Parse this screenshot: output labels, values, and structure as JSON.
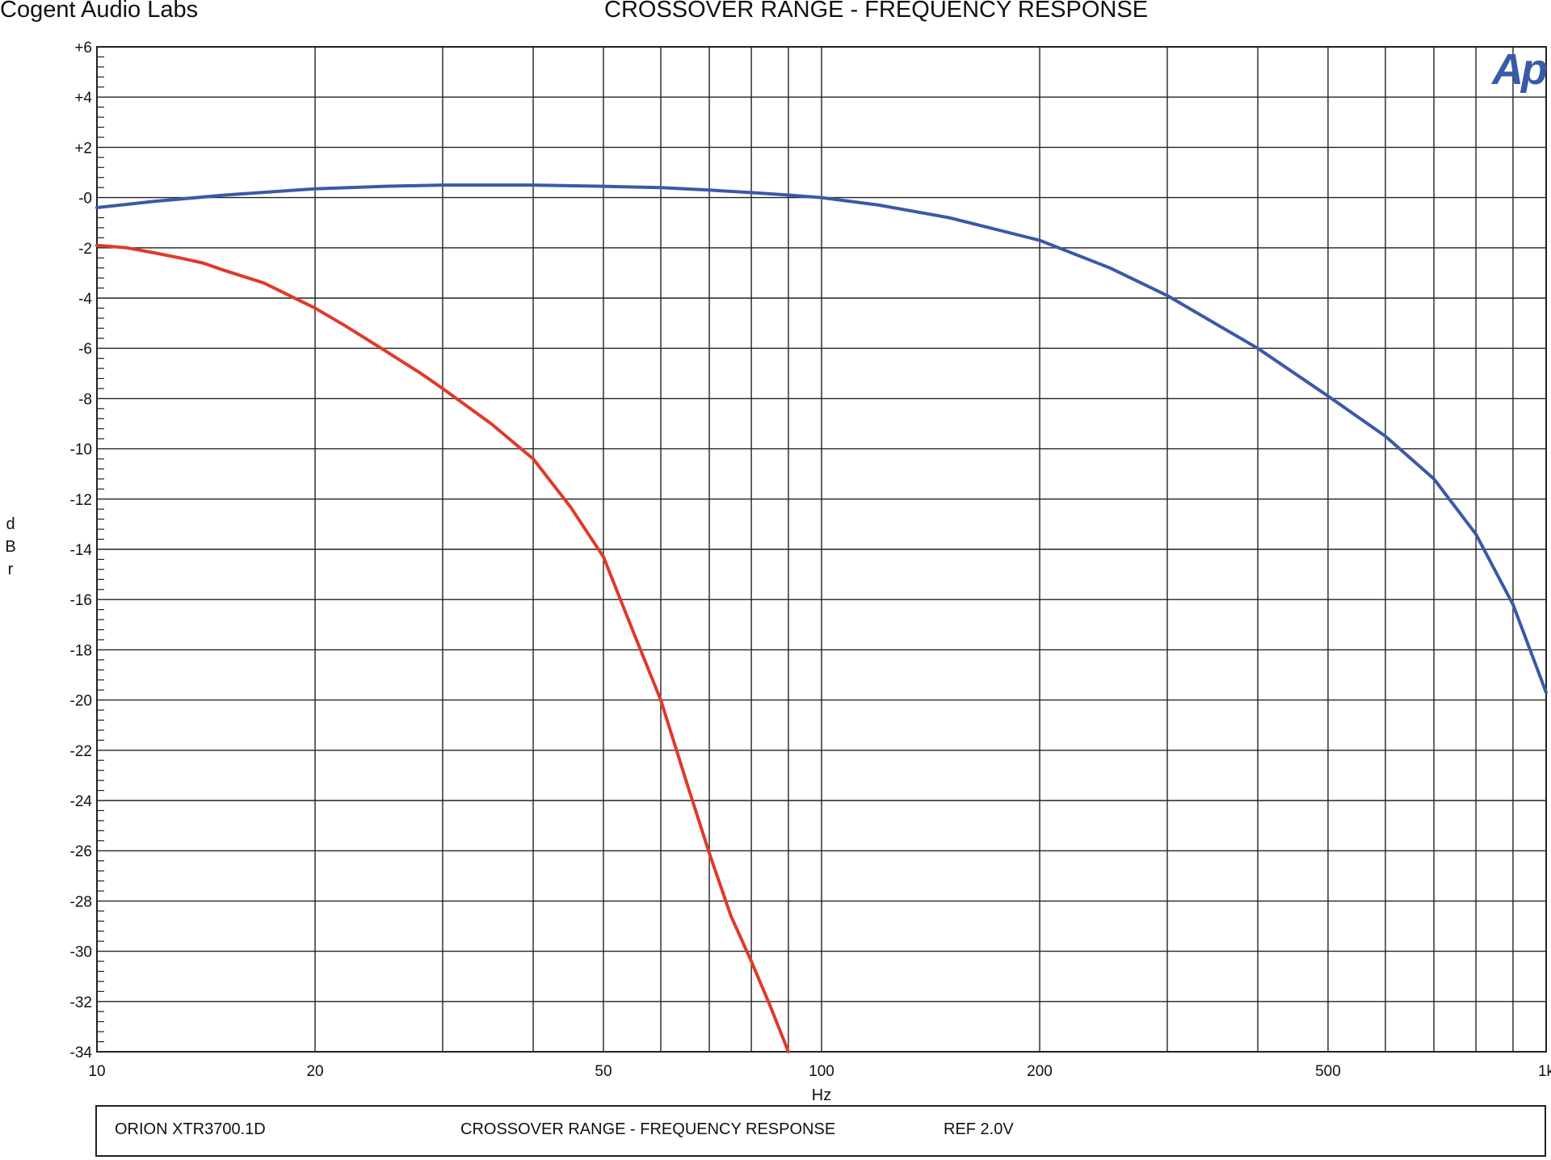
{
  "header": {
    "brand": "Cogent Audio Labs",
    "title": "CROSSOVER RANGE  -  FREQUENCY RESPONSE"
  },
  "footer": {
    "model": "ORION  XTR3700.1D",
    "title": "CROSSOVER RANGE  -  FREQUENCY RESPONSE",
    "ref": "REF 2.0V"
  },
  "chart_data": {
    "type": "line",
    "title": "CROSSOVER RANGE  -  FREQUENCY RESPONSE",
    "xlabel": "Hz",
    "ylabel": "dBr",
    "xscale": "log",
    "xlim": [
      10,
      1000
    ],
    "ylim": [
      -34,
      6
    ],
    "grid": true,
    "legend": "none",
    "logo_text": "Ap",
    "logo_color": "#3a5aa8",
    "x_tick_labels": [
      {
        "value": 10,
        "label": "10"
      },
      {
        "value": 20,
        "label": "20"
      },
      {
        "value": 50,
        "label": "50"
      },
      {
        "value": 100,
        "label": "100"
      },
      {
        "value": 200,
        "label": "200"
      },
      {
        "value": 500,
        "label": "500"
      },
      {
        "value": 1000,
        "label": "1k"
      }
    ],
    "x_gridlines": [
      10,
      20,
      30,
      40,
      50,
      60,
      70,
      80,
      90,
      100,
      200,
      300,
      400,
      500,
      600,
      700,
      800,
      900,
      1000
    ],
    "y_ticks": [
      {
        "value": 6,
        "label": "+6"
      },
      {
        "value": 4,
        "label": "+4"
      },
      {
        "value": 2,
        "label": "+2"
      },
      {
        "value": 0,
        "label": "-0"
      },
      {
        "value": -2,
        "label": "-2"
      },
      {
        "value": -4,
        "label": "-4"
      },
      {
        "value": -6,
        "label": "-6"
      },
      {
        "value": -8,
        "label": "-8"
      },
      {
        "value": -10,
        "label": "-10"
      },
      {
        "value": -12,
        "label": "-12"
      },
      {
        "value": -14,
        "label": "-14"
      },
      {
        "value": -16,
        "label": "-16"
      },
      {
        "value": -18,
        "label": "-18"
      },
      {
        "value": -20,
        "label": "-20"
      },
      {
        "value": -22,
        "label": "-22"
      },
      {
        "value": -24,
        "label": "-24"
      },
      {
        "value": -26,
        "label": "-26"
      },
      {
        "value": -28,
        "label": "-28"
      },
      {
        "value": -30,
        "label": "-30"
      },
      {
        "value": -32,
        "label": "-32"
      },
      {
        "value": -34,
        "label": "-34"
      }
    ],
    "series": [
      {
        "color": "#3a5aa8",
        "x": [
          10,
          12,
          15,
          20,
          25,
          30,
          40,
          50,
          60,
          70,
          80,
          90,
          100,
          120,
          150,
          200,
          250,
          300,
          400,
          500,
          600,
          700,
          800,
          900,
          1000
        ],
        "y": [
          -0.4,
          -0.15,
          0.1,
          0.35,
          0.45,
          0.5,
          0.5,
          0.45,
          0.4,
          0.3,
          0.2,
          0.1,
          0.0,
          -0.3,
          -0.8,
          -1.7,
          -2.8,
          -3.9,
          -6.0,
          -7.9,
          -9.5,
          -11.2,
          -13.4,
          -16.2,
          -19.7
        ]
      },
      {
        "color": "#e03a2a",
        "x": [
          10,
          11,
          12,
          13,
          14,
          15,
          17,
          20,
          22,
          25,
          28,
          30,
          35,
          40,
          45,
          50,
          55,
          60,
          65,
          70,
          75,
          80,
          85,
          90
        ],
        "y": [
          -1.9,
          -2.0,
          -2.2,
          -2.4,
          -2.6,
          -2.9,
          -3.4,
          -4.4,
          -5.1,
          -6.1,
          -7.0,
          -7.6,
          -9.0,
          -10.4,
          -12.3,
          -14.3,
          -17.3,
          -20.0,
          -23.2,
          -26.1,
          -28.6,
          -30.4,
          -32.2,
          -34.0
        ]
      }
    ]
  }
}
